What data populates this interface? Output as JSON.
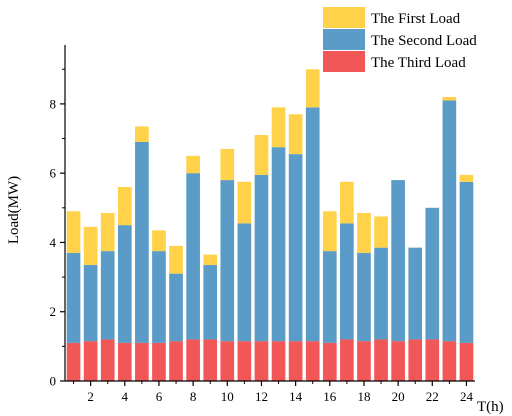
{
  "chart_data": {
    "type": "bar",
    "stacked": true,
    "xlabel": "T(h)",
    "ylabel": "Load(MW)",
    "x": [
      1,
      2,
      3,
      4,
      5,
      6,
      7,
      8,
      9,
      10,
      11,
      12,
      13,
      14,
      15,
      16,
      17,
      18,
      19,
      20,
      21,
      22,
      23,
      24
    ],
    "x_tick_labels": [
      "2",
      "4",
      "6",
      "8",
      "10",
      "12",
      "14",
      "16",
      "18",
      "20",
      "22",
      "24"
    ],
    "x_tick_values": [
      2,
      4,
      6,
      8,
      10,
      12,
      14,
      16,
      18,
      20,
      22,
      24
    ],
    "y_ticks": [
      0,
      2,
      4,
      6,
      8
    ],
    "ylim": [
      0,
      9.7
    ],
    "xlim": [
      0.5,
      24.5
    ],
    "grid": false,
    "legend_position": "top-right",
    "colors": {
      "first": "#ffd24a",
      "second": "#5b9bc8",
      "third": "#f25757"
    },
    "legend": [
      "The First Load",
      "The Second Load",
      "The Third Load"
    ],
    "series": [
      {
        "name": "The Third Load",
        "values": [
          1.1,
          1.15,
          1.2,
          1.1,
          1.1,
          1.1,
          1.15,
          1.2,
          1.2,
          1.15,
          1.15,
          1.15,
          1.15,
          1.15,
          1.15,
          1.1,
          1.2,
          1.15,
          1.2,
          1.15,
          1.2,
          1.2,
          1.15,
          1.1
        ]
      },
      {
        "name": "The Second Load",
        "values": [
          2.6,
          2.2,
          2.55,
          3.4,
          5.8,
          2.65,
          1.95,
          4.8,
          2.15,
          4.65,
          3.4,
          4.8,
          5.6,
          5.4,
          6.75,
          2.65,
          3.35,
          2.55,
          2.65,
          4.65,
          2.65,
          3.8,
          6.95,
          4.65
        ]
      },
      {
        "name": "The First Load",
        "values": [
          1.2,
          1.1,
          1.1,
          1.1,
          0.45,
          0.6,
          0.8,
          0.5,
          0.3,
          0.9,
          1.2,
          1.15,
          1.15,
          1.15,
          1.1,
          1.15,
          1.2,
          1.15,
          0.9,
          0,
          0,
          0,
          0.1,
          0.2
        ]
      }
    ]
  }
}
